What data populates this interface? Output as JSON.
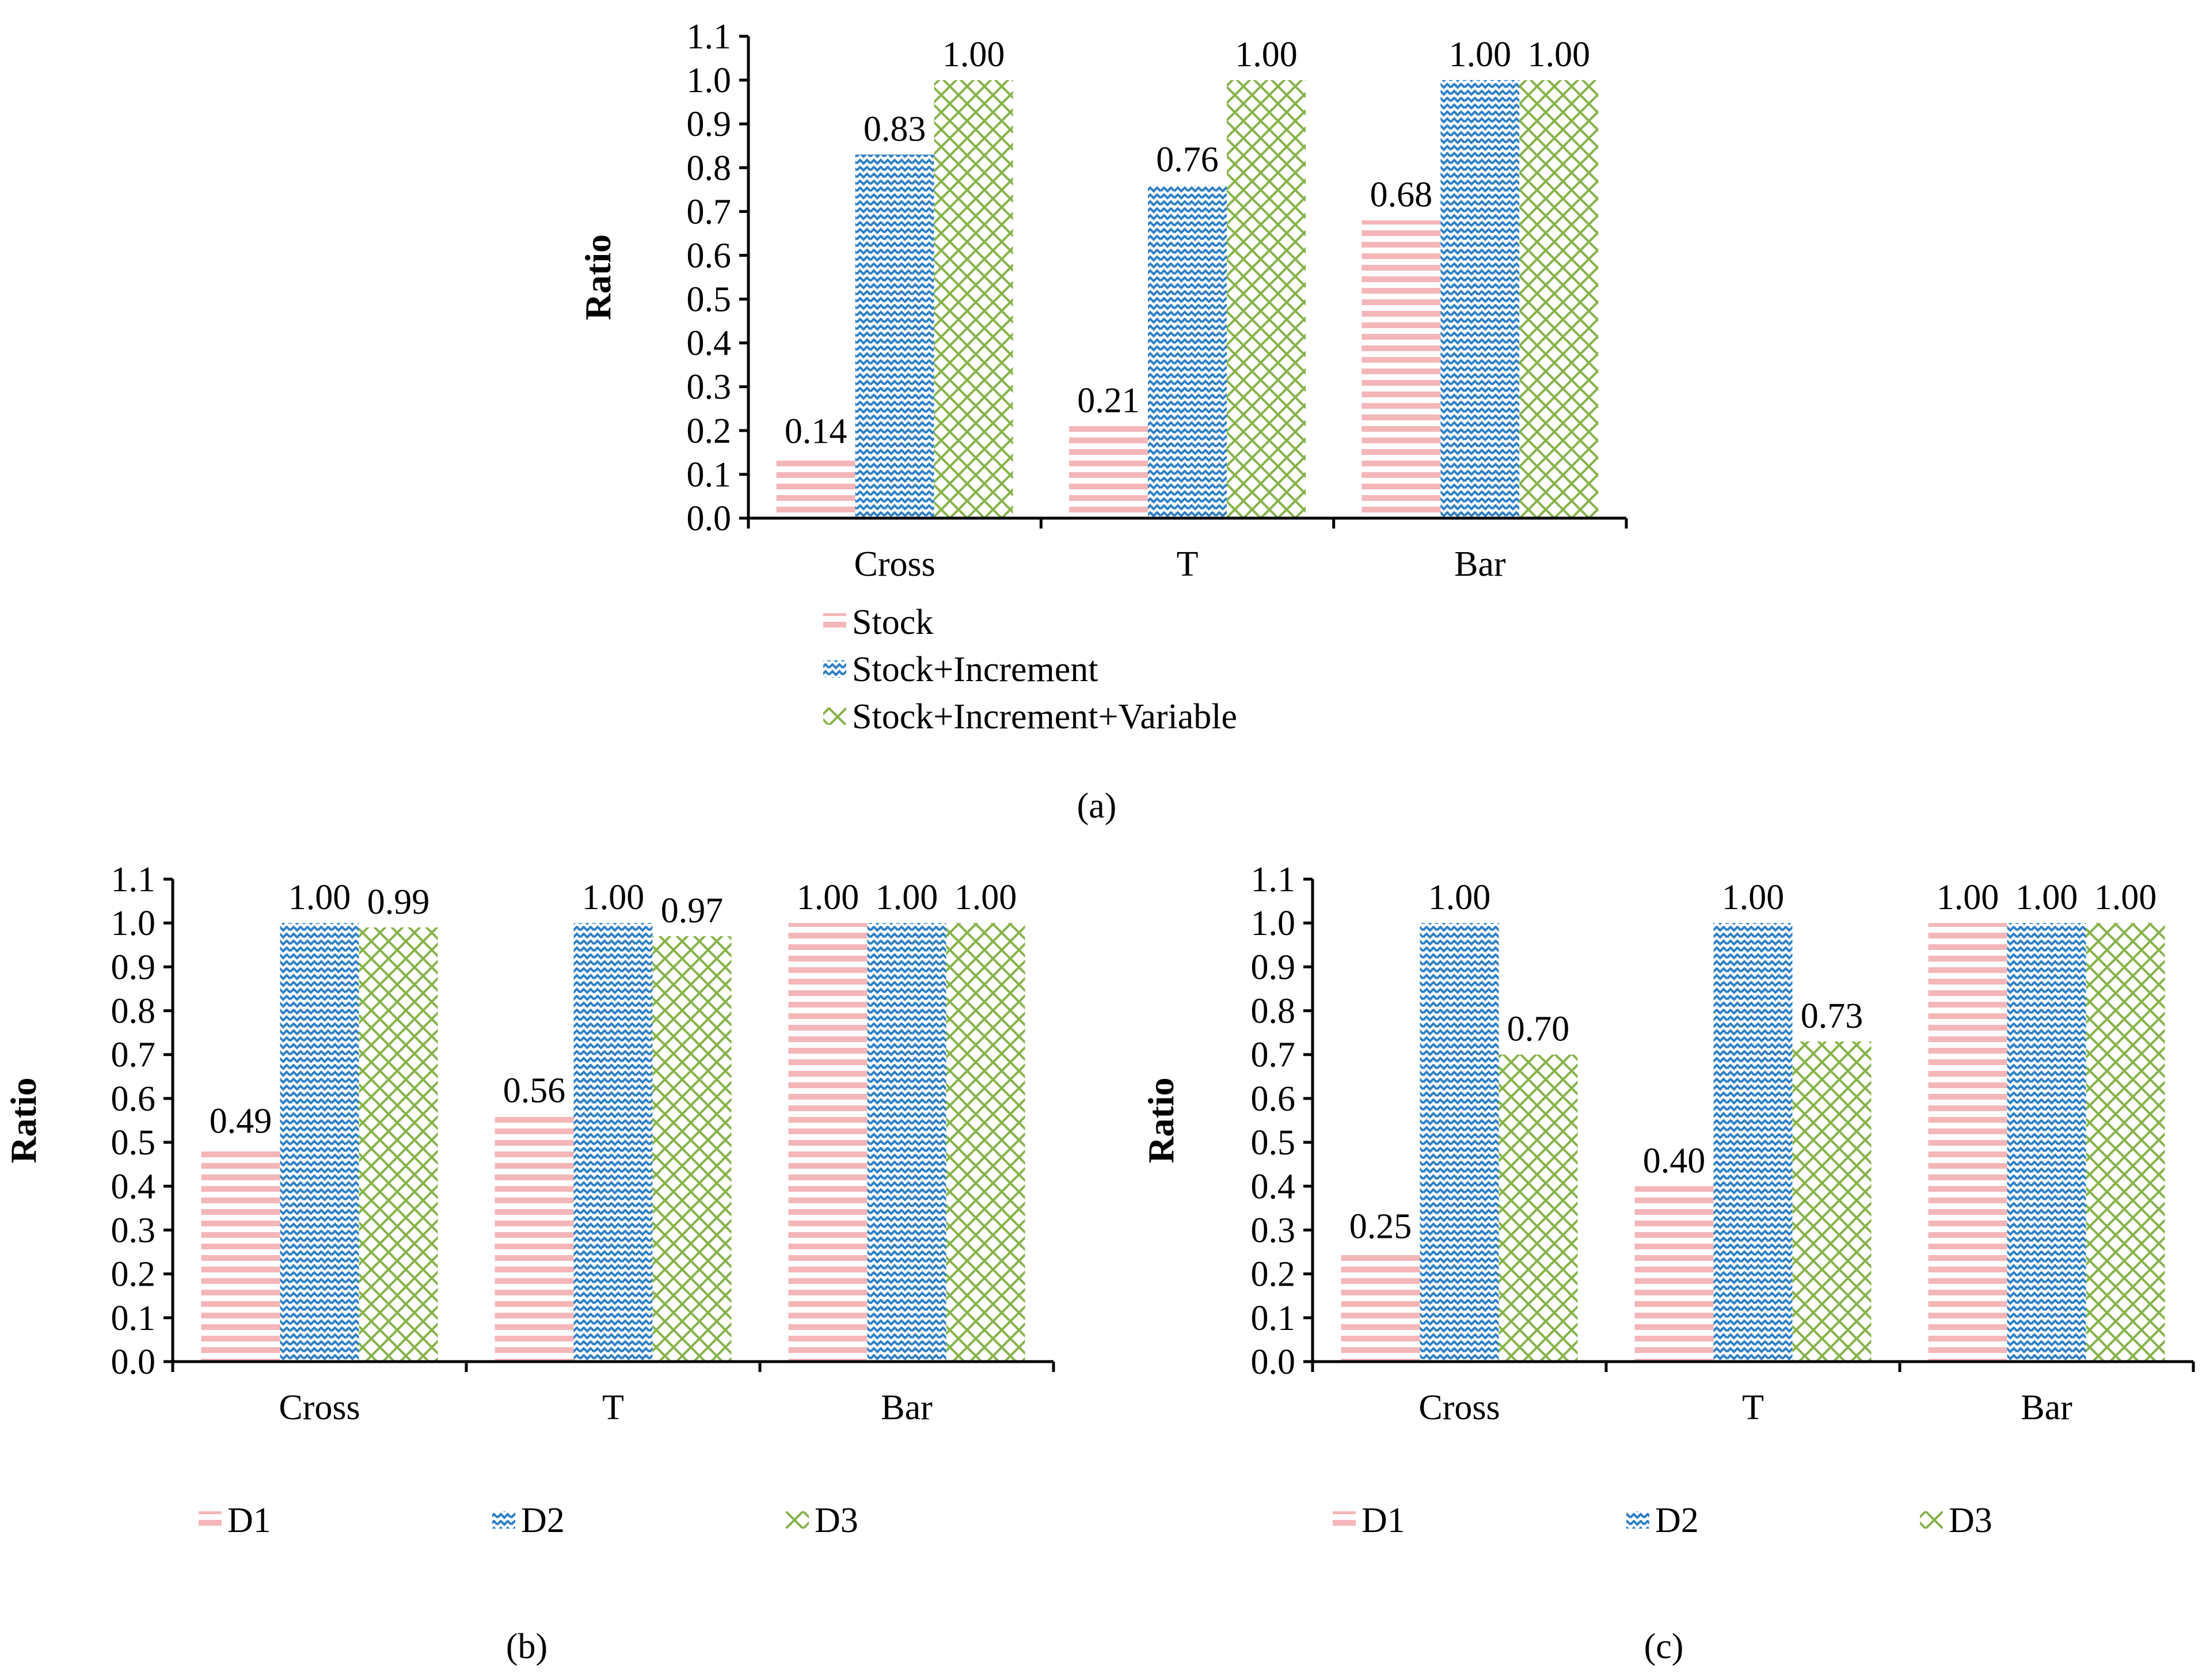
{
  "figure": {
    "panel_labels": [
      "(a)",
      "(b)",
      "(c)"
    ]
  },
  "colors": {
    "pink": "#f4b6b8",
    "blue": "#2e7fc4",
    "green": "#86b34a",
    "axis": "#000000"
  },
  "icons": [
    "horizontal-stripe-pattern",
    "zigzag-pattern",
    "lattice-pattern"
  ],
  "chart_data": [
    {
      "type": "bar",
      "panel": "a",
      "title": "",
      "xlabel": "",
      "ylabel": "Ratio",
      "ylim": [
        0,
        1.1
      ],
      "yticks": [
        "0.0",
        "0.1",
        "0.2",
        "0.3",
        "0.4",
        "0.5",
        "0.6",
        "0.7",
        "0.8",
        "0.9",
        "1.0",
        "1.1"
      ],
      "categories": [
        "Cross",
        "T",
        "Bar"
      ],
      "series": [
        {
          "name": "Stock",
          "values": [
            0.14,
            0.21,
            0.68
          ],
          "labels": [
            "0.14",
            "0.21",
            "0.68"
          ]
        },
        {
          "name": "Stock+Increment",
          "values": [
            0.83,
            0.76,
            1.0
          ],
          "labels": [
            "0.83",
            "0.76",
            "1.00"
          ]
        },
        {
          "name": "Stock+Increment+Variable",
          "values": [
            1.0,
            1.0,
            1.0
          ],
          "labels": [
            "1.00",
            "1.00",
            "1.00"
          ]
        }
      ],
      "grid": false,
      "legend": "bottom, vertical"
    },
    {
      "type": "bar",
      "panel": "b",
      "title": "",
      "xlabel": "",
      "ylabel": "Ratio",
      "ylim": [
        0,
        1.1
      ],
      "yticks": [
        "0.0",
        "0.1",
        "0.2",
        "0.3",
        "0.4",
        "0.5",
        "0.6",
        "0.7",
        "0.8",
        "0.9",
        "1.0",
        "1.1"
      ],
      "categories": [
        "Cross",
        "T",
        "Bar"
      ],
      "series": [
        {
          "name": "D1",
          "values": [
            0.49,
            0.56,
            1.0
          ],
          "labels": [
            "0.49",
            "0.56",
            "1.00"
          ]
        },
        {
          "name": "D2",
          "values": [
            1.0,
            1.0,
            1.0
          ],
          "labels": [
            "1.00",
            "1.00",
            "1.00"
          ]
        },
        {
          "name": "D3",
          "values": [
            0.99,
            0.97,
            1.0
          ],
          "labels": [
            "0.99",
            "0.97",
            "1.00"
          ]
        }
      ],
      "grid": false,
      "legend": "bottom, horizontal"
    },
    {
      "type": "bar",
      "panel": "c",
      "title": "",
      "xlabel": "",
      "ylabel": "Ratio",
      "ylim": [
        0,
        1.1
      ],
      "yticks": [
        "0.0",
        "0.1",
        "0.2",
        "0.3",
        "0.4",
        "0.5",
        "0.6",
        "0.7",
        "0.8",
        "0.9",
        "1.0",
        "1.1"
      ],
      "categories": [
        "Cross",
        "T",
        "Bar"
      ],
      "series": [
        {
          "name": "D1",
          "values": [
            0.25,
            0.4,
            1.0
          ],
          "labels": [
            "0.25",
            "0.40",
            "1.00"
          ]
        },
        {
          "name": "D2",
          "values": [
            1.0,
            1.0,
            1.0
          ],
          "labels": [
            "1.00",
            "1.00",
            "1.00"
          ]
        },
        {
          "name": "D3",
          "values": [
            0.7,
            0.73,
            1.0
          ],
          "labels": [
            "0.70",
            "0.73",
            "1.00"
          ]
        }
      ],
      "grid": false,
      "legend": "bottom, horizontal"
    }
  ]
}
